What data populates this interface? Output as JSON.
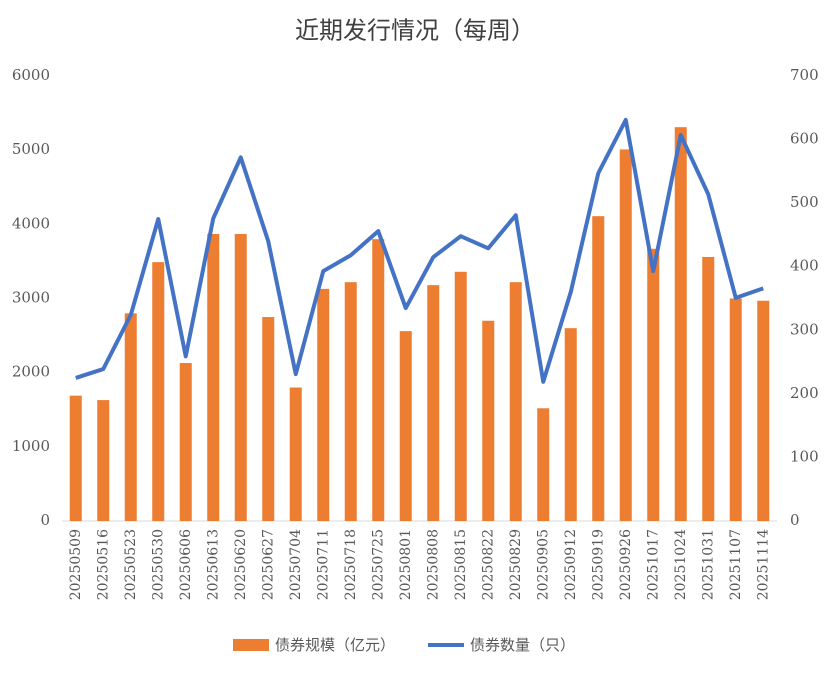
{
  "chart_data": {
    "type": "bar-line",
    "title": "近期发行情况（每周）",
    "categories": [
      "20250509",
      "20250516",
      "20250523",
      "20250530",
      "20250606",
      "20250613",
      "20250620",
      "20250627",
      "20250704",
      "20250711",
      "20250718",
      "20250725",
      "20250801",
      "20250808",
      "20250815",
      "20250822",
      "20250829",
      "20250905",
      "20250912",
      "20250919",
      "20250926",
      "20251017",
      "20251024",
      "20251031",
      "20251107",
      "20251114"
    ],
    "series": [
      {
        "name": "债券规模（亿元）",
        "type": "bar",
        "color": "#ed7d31",
        "values": [
          1690,
          1630,
          2800,
          3490,
          2130,
          3870,
          3870,
          2750,
          1800,
          3130,
          3220,
          3800,
          2560,
          3180,
          3360,
          2700,
          3220,
          1520,
          2600,
          4110,
          5010,
          3670,
          5310,
          3560,
          3000,
          2970
        ]
      },
      {
        "name": "债券数量（只）",
        "type": "line",
        "axis": "y2",
        "color": "#4472c4",
        "values": [
          225,
          239,
          324,
          475,
          259,
          476,
          572,
          440,
          231,
          393,
          418,
          456,
          335,
          415,
          448,
          429,
          481,
          219,
          360,
          547,
          631,
          393,
          607,
          514,
          351,
          366
        ]
      }
    ],
    "ylim": [
      0,
      6000
    ],
    "yticks": [
      0,
      1000,
      2000,
      3000,
      4000,
      5000,
      6000
    ],
    "y2lim": [
      0,
      700
    ],
    "y2ticks": [
      0,
      100,
      200,
      300,
      400,
      500,
      600,
      700
    ],
    "legend": "bottom"
  }
}
